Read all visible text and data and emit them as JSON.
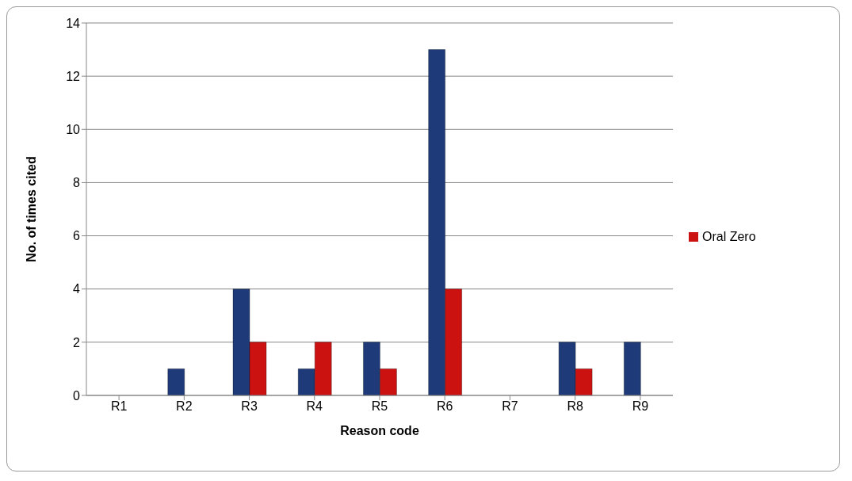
{
  "chart_data": {
    "type": "bar",
    "xlabel": "Reason code",
    "ylabel": "No. of times cited",
    "categories": [
      "R1",
      "R2",
      "R3",
      "R4",
      "R5",
      "R6",
      "R7",
      "R8",
      "R9"
    ],
    "series": [
      {
        "color": "#1f3a78",
        "values": [
          0,
          1,
          4,
          1,
          2,
          13,
          0,
          2,
          2
        ]
      },
      {
        "name": "Oral Zero",
        "color": "#cc1111",
        "values": [
          0,
          0,
          2,
          2,
          1,
          4,
          0,
          1,
          0
        ]
      }
    ],
    "ylim": [
      0,
      14
    ],
    "yticks": [
      0,
      2,
      4,
      6,
      8,
      10,
      12,
      14
    ],
    "grid": "y",
    "legend": "right"
  }
}
